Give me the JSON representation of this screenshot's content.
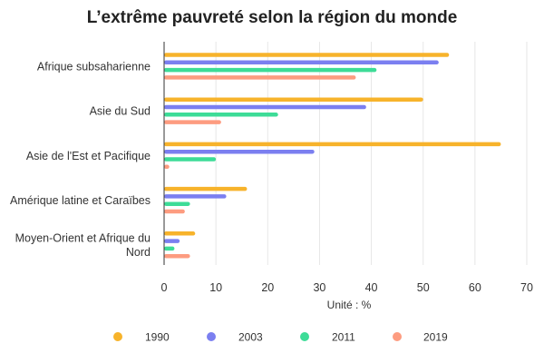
{
  "chart_data": {
    "type": "bar",
    "orientation": "horizontal",
    "title": "L’extrême pauvreté selon la région du monde",
    "xlabel": "Unité : %",
    "xlim": [
      0,
      70
    ],
    "xticks": [
      0,
      10,
      20,
      30,
      40,
      50,
      60,
      70
    ],
    "grid": true,
    "legend": "bottom",
    "categories": [
      "Afrique subsaharienne",
      "Asie du Sud",
      "Asie de l'Est et Pacifique",
      "Amérique latine et Caraïbes",
      "Moyen-Orient et Afrique du Nord"
    ],
    "category_lines": [
      [
        "Afrique subsaharienne"
      ],
      [
        "Asie du Sud"
      ],
      [
        "Asie de l'Est et Pacifique"
      ],
      [
        "Amérique latine et Caraïbes"
      ],
      [
        "Moyen-Orient et Afrique du",
        "Nord"
      ]
    ],
    "series": [
      {
        "name": "1990",
        "color": "#f7b32b",
        "values": [
          55,
          50,
          65,
          16,
          6
        ]
      },
      {
        "name": "2003",
        "color": "#7b7ff0",
        "values": [
          53,
          39,
          29,
          12,
          3
        ]
      },
      {
        "name": "2011",
        "color": "#3ddc97",
        "values": [
          41,
          22,
          10,
          5,
          2
        ]
      },
      {
        "name": "2019",
        "color": "#fd9c80",
        "values": [
          37,
          11,
          1,
          4,
          5
        ]
      }
    ]
  }
}
